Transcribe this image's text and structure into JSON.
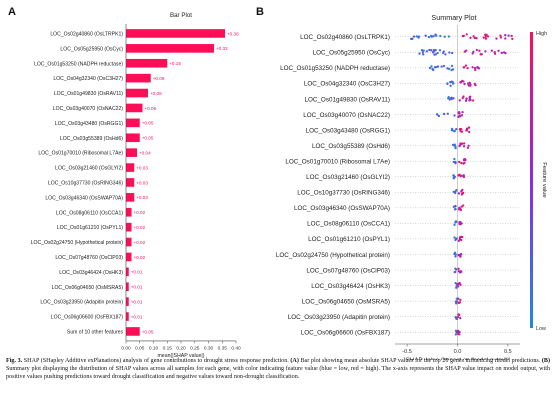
{
  "panels": {
    "a": "A",
    "b": "B"
  },
  "colors": {
    "bar": "#ff0d57",
    "low": "#1e88e5",
    "high": "#ff0d57",
    "zero_line": "#999999"
  },
  "chart_data": [
    {
      "type": "bar",
      "orientation": "horizontal",
      "title": "Bar Plot",
      "xlabel": "mean(|SHAP value|)",
      "xlim": [
        0,
        0.4
      ],
      "xticks": [
        "0.00",
        "0.05",
        "0.10",
        "0.15",
        "0.20",
        "0.25",
        "0.30",
        "0.35",
        "0.40"
      ],
      "categories": [
        "LOC_Os02g40860 (OsLTRPK1)",
        "LOC_Os05g25950 (OsCyc)",
        "LOC_Os01g53250 (NADPH reductase)",
        "LOC_Os04g32340 (OsC3H27)",
        "LOC_Os01g49830 (OsRAV11)",
        "LOC_Os03g40070 (OsNAC22)",
        "LOC_Os03g43480 (OsRGG1)",
        "LOC_Os03g55389 (OsHd6)",
        "LOC_Os01g70010 (Ribosomal L7Ae)",
        "LOC_Os03g21460 (OsGLYI2)",
        "LOC_Os10g37730 (OsRING346)",
        "LOC_Os03g46340 (OsSWAP70A)",
        "LOC_Os08g06110 (OsCCA1)",
        "LOC_Os01g61210 (OsPYL1)",
        "LOC_Os02g24750 (Hypothetical protein)",
        "LOC_Os07g48760 (OsClP03)",
        "LOC_Os03g46424 (OsHK3)",
        "LOC_Os06g04650 (OsMSRA5)",
        "LOC_Os03g23950 (Adapitin protein)",
        "LOC_Os06g06600 (OsFBX187)",
        "Sum of 10 other features"
      ],
      "values": [
        0.36,
        0.32,
        0.15,
        0.09,
        0.08,
        0.06,
        0.05,
        0.05,
        0.04,
        0.03,
        0.03,
        0.03,
        0.02,
        0.02,
        0.02,
        0.02,
        0.01,
        0.01,
        0.01,
        0.01,
        0.05
      ],
      "labels": [
        "+0.36",
        "+0.32",
        "+0.15",
        "+0.09",
        "+0.08",
        "+0.06",
        "+0.05",
        "+0.05",
        "+0.04",
        "+0.03",
        "+0.03",
        "+0.03",
        "+0.02",
        "+0.02",
        "+0.02",
        "+0.02",
        "+0.01",
        "+0.01",
        "+0.01",
        "+0.01",
        "+0.05"
      ]
    },
    {
      "type": "scatter",
      "subtype": "shap_beeswarm",
      "title": "Summary Plot",
      "xlabel": "SHAP value (impact on model output)",
      "xlim": [
        -0.62,
        0.62
      ],
      "xticks": [
        "-0.5",
        "0.0",
        "0.5"
      ],
      "colorbar": {
        "label": "Feature value",
        "high": "High",
        "low": "Low"
      },
      "features": [
        {
          "name": "LOC_Os02g40860 (OsLTRPK1)",
          "low_range": [
            -0.48,
            -0.08
          ],
          "high_range": [
            0.05,
            0.56
          ],
          "n_low": 18,
          "n_high": 22
        },
        {
          "name": "LOC_Os05g25950 (OsCyc)",
          "low_range": [
            -0.38,
            -0.05
          ],
          "high_range": [
            0.05,
            0.48
          ],
          "n_low": 22,
          "n_high": 16
        },
        {
          "name": "LOC_Os01g53250 (NADPH reductase)",
          "low_range": [
            -0.28,
            -0.03
          ],
          "high_range": [
            0.04,
            0.22
          ],
          "n_low": 14,
          "n_high": 10
        },
        {
          "name": "LOC_Os04g32340 (OsC3H27)",
          "low_range": [
            -0.1,
            -0.01
          ],
          "high_range": [
            0.02,
            0.18
          ],
          "n_low": 8,
          "n_high": 12
        },
        {
          "name": "LOC_Os01g49830 (OsRAV11)",
          "low_range": [
            -0.1,
            -0.01
          ],
          "high_range": [
            0.02,
            0.16
          ],
          "n_low": 8,
          "n_high": 12
        },
        {
          "name": "LOC_Os03g40070 (OsNAC22)",
          "low_range": [
            -0.22,
            -0.01
          ],
          "high_range": [
            0.01,
            0.05
          ],
          "n_low": 6,
          "n_high": 8
        },
        {
          "name": "LOC_Os03g43480 (OsRGG1)",
          "low_range": [
            -0.06,
            -0.01
          ],
          "high_range": [
            0.01,
            0.12
          ],
          "n_low": 6,
          "n_high": 10
        },
        {
          "name": "LOC_Os03g55389 (OsHd6)",
          "low_range": [
            -0.05,
            -0.01
          ],
          "high_range": [
            0.01,
            0.12
          ],
          "n_low": 6,
          "n_high": 9
        },
        {
          "name": "LOC_Os01g70010 (Ribosomal L7Ae)",
          "low_range": [
            -0.05,
            -0.01
          ],
          "high_range": [
            0.01,
            0.08
          ],
          "n_low": 5,
          "n_high": 8
        },
        {
          "name": "LOC_Os03g21460 (OsGLYI2)",
          "low_range": [
            -0.04,
            -0.01
          ],
          "high_range": [
            0.01,
            0.07
          ],
          "n_low": 5,
          "n_high": 7
        },
        {
          "name": "LOC_Os10g37730 (OsRING346)",
          "low_range": [
            -0.04,
            -0.01
          ],
          "high_range": [
            0.01,
            0.06
          ],
          "n_low": 5,
          "n_high": 7
        },
        {
          "name": "LOC_Os03g46340 (OsSWAP70A)",
          "low_range": [
            -0.04,
            -0.01
          ],
          "high_range": [
            0.01,
            0.06
          ],
          "n_low": 5,
          "n_high": 7
        },
        {
          "name": "LOC_Os08g06110 (OsCCA1)",
          "low_range": [
            -0.03,
            -0.01
          ],
          "high_range": [
            0.01,
            0.05
          ],
          "n_low": 4,
          "n_high": 6
        },
        {
          "name": "LOC_Os01g61210 (OsPYL1)",
          "low_range": [
            -0.03,
            -0.01
          ],
          "high_range": [
            0.01,
            0.05
          ],
          "n_low": 4,
          "n_high": 6
        },
        {
          "name": "LOC_Os02g24750 (Hypothetical protein)",
          "low_range": [
            -0.03,
            -0.01
          ],
          "high_range": [
            0.01,
            0.04
          ],
          "n_low": 4,
          "n_high": 6
        },
        {
          "name": "LOC_Os07g48760 (OsClP03)",
          "low_range": [
            -0.03,
            -0.01
          ],
          "high_range": [
            0.01,
            0.04
          ],
          "n_low": 4,
          "n_high": 6
        },
        {
          "name": "LOC_Os03g46424 (OsHK3)",
          "low_range": [
            -0.02,
            -0.005
          ],
          "high_range": [
            0.005,
            0.03
          ],
          "n_low": 4,
          "n_high": 5
        },
        {
          "name": "LOC_Os06g04650 (OsMSRA5)",
          "low_range": [
            -0.02,
            -0.005
          ],
          "high_range": [
            0.005,
            0.03
          ],
          "n_low": 4,
          "n_high": 5
        },
        {
          "name": "LOC_Os03g23950 (Adapitin protein)",
          "low_range": [
            -0.02,
            -0.005
          ],
          "high_range": [
            0.005,
            0.03
          ],
          "n_low": 4,
          "n_high": 5
        },
        {
          "name": "LOC_Os06g06600 (OsFBX187)",
          "low_range": [
            -0.02,
            -0.005
          ],
          "high_range": [
            0.005,
            0.02
          ],
          "n_low": 4,
          "n_high": 5
        }
      ]
    }
  ],
  "caption": {
    "label": "Fig. 3.",
    "text_1": " SHAP (SHapley Additive exPlanations) analysis of gene contributions to drought stress response prediction. ",
    "a_label": "(A)",
    "text_2": " Bar plot showing mean absolute SHAP values for the top 20 genes influencing model predictions. ",
    "b_label": "(B)",
    "text_3": " Summary plot displaying the distribution of SHAP values across all samples for each gene, with color indicating feature value (blue = low, red = high). The x-axis represents the SHAP value impact on model output, with positive values pushing predictions toward drought classification and negative values toward non-drought classification."
  }
}
